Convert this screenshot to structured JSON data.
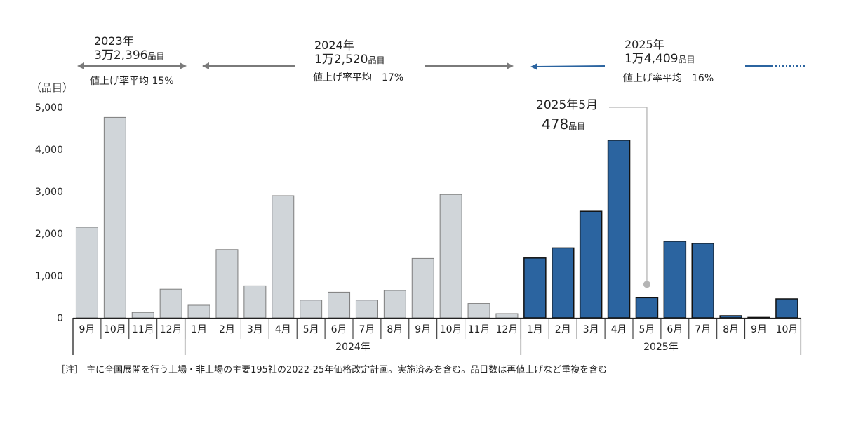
{
  "chart_data": {
    "type": "bar",
    "ylabel": "（品目）",
    "ylim": [
      0,
      5000
    ],
    "yticks": [
      "0",
      "1,000",
      "2,000",
      "3,000",
      "4,000",
      "5,000"
    ],
    "categories": [
      "9月",
      "10月",
      "11月",
      "12月",
      "1月",
      "2月",
      "3月",
      "4月",
      "5月",
      "6月",
      "7月",
      "8月",
      "9月",
      "10月",
      "11月",
      "12月",
      "1月",
      "2月",
      "3月",
      "4月",
      "5月",
      "6月",
      "7月",
      "8月",
      "9月",
      "10月"
    ],
    "values": [
      2150,
      4760,
      130,
      680,
      300,
      1620,
      760,
      2900,
      420,
      610,
      420,
      650,
      1410,
      2930,
      340,
      100,
      1420,
      1660,
      2530,
      4220,
      478,
      1820,
      1770,
      50,
      10,
      450
    ],
    "groups": [
      {
        "label": "",
        "start": 0,
        "end": 3
      },
      {
        "label": "2024年",
        "start": 4,
        "end": 15
      },
      {
        "label": "2025年",
        "start": 16,
        "end": 25
      }
    ],
    "highlight_from_index": 16,
    "colors": {
      "past": "#d0d5d9",
      "past_stroke": "#7d7d7d",
      "current": "#2b64a0",
      "current_stroke": "#111111",
      "arrow_gray": "#7a7a7a",
      "arrow_blue": "#2b64a0"
    },
    "year_summaries": [
      {
        "year": "2023年",
        "count_num": "3万2,396",
        "count_unit": "品目",
        "rate": "値上げ率平均 15%"
      },
      {
        "year": "2024年",
        "count_num": "1万2,520",
        "count_unit": "品目",
        "rate": "値上げ率平均　17%"
      },
      {
        "year": "2025年",
        "count_num": "1万4,409",
        "count_unit": "品目",
        "rate": "値上げ率平均　16%"
      }
    ],
    "annotation": {
      "index": 20,
      "label": "2025年5月",
      "value_num": "478",
      "value_unit": "品目"
    },
    "note": "［注］ 主に全国展開を行う上場・非上場の主要195社の2022-25年価格改定計画。実施済みを含む。品目数は再値上げなど重複を含む"
  }
}
